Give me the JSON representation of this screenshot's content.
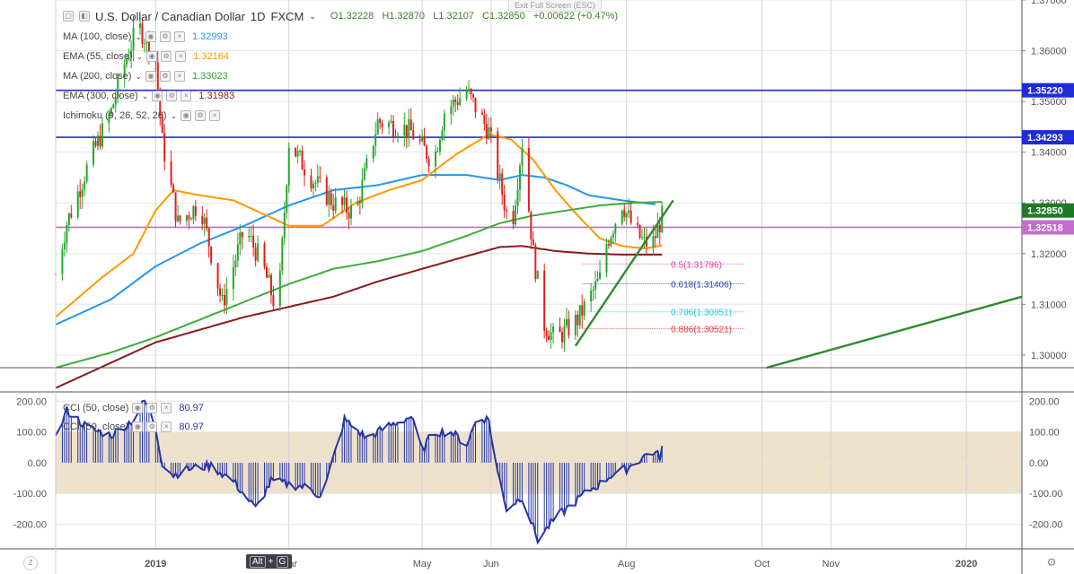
{
  "header": {
    "symbol": "U.S. Dollar / Canadian Dollar",
    "interval": "1D",
    "source": "FXCM",
    "open": "O1.32228",
    "high": "H1.32870",
    "low": "L1.32107",
    "close": "C1.32850",
    "change": "+0.00622 (+0.47%)",
    "exit_fullscreen": "Exit Full Screen (ESC)"
  },
  "indicators": [
    {
      "name": "MA (100, close)",
      "value": "1.32993",
      "color": "#2196f3"
    },
    {
      "name": "EMA (55, close)",
      "value": "1.32164",
      "color": "#ff9800"
    },
    {
      "name": "MA (200, close)",
      "value": "1.33023",
      "color": "#2e9e2e"
    },
    {
      "name": "EMA (300, close)",
      "value": "1.31983",
      "color": "#8b1a1a"
    },
    {
      "name": "Ichimoku (9, 26, 52, 26)",
      "value": "",
      "color": "#888888"
    }
  ],
  "cci_legend": [
    {
      "name": "CCI (50, close)",
      "value": "80.97"
    },
    {
      "name": "CCI (50, close)",
      "value": "80.97"
    }
  ],
  "shortcut": {
    "alt": "Alt",
    "plus": "+",
    "key": "G"
  },
  "corner_left": "Z",
  "colors": {
    "up": "#26a62c",
    "down": "#e0201c",
    "ma100": "#2196f3",
    "ema55": "#ff9800",
    "ma200": "#3cad3c",
    "ema300": "#8b1a1a",
    "hline": "#1e2bd6",
    "magenta": "#c06ec8",
    "trend": "#2e8b2e",
    "cci": "#2636a8",
    "cci_band": "#ede1cb"
  },
  "chart_data": {
    "type": "candlestick",
    "price_axis": {
      "ylim": [
        1.2975,
        1.37
      ],
      "ticks": [
        "1.37000",
        "1.36000",
        "1.35000",
        "1.34000",
        "1.33000",
        "1.32000",
        "1.31000",
        "1.30000"
      ],
      "tick_values": [
        1.37,
        1.36,
        1.35,
        1.34,
        1.33,
        1.32,
        1.31,
        1.3
      ]
    },
    "x_axis": {
      "labels": [
        "2019",
        "Mar",
        "May",
        "Jun",
        "Aug",
        "Oct",
        "Nov",
        "2020"
      ],
      "label_days": [
        0,
        60,
        120,
        151,
        212,
        273,
        304,
        365
      ],
      "xlim_days": [
        -45,
        390
      ]
    },
    "price_labels": [
      {
        "text": "1.35220",
        "value": 1.3522,
        "color": "#1e2bd6"
      },
      {
        "text": "1.34293",
        "value": 1.34293,
        "color": "#1e2bd6"
      },
      {
        "text": "1.32850",
        "value": 1.3285,
        "color": "#1f7a26"
      },
      {
        "text": "1.32518",
        "value": 1.32518,
        "color": "#c06ec8"
      }
    ],
    "horizontal_lines": [
      {
        "value": 1.3522,
        "color": "#1e2bd6"
      },
      {
        "value": 1.34293,
        "color": "#1e2bd6"
      },
      {
        "value": 1.32518,
        "color": "#c06ec8"
      }
    ],
    "fibonacci": [
      {
        "label": "0.5(1.31796)",
        "value": 1.31796,
        "color": "#e040a0"
      },
      {
        "label": "0.618(1.31406)",
        "value": 1.31406,
        "color": "#3040b0"
      },
      {
        "label": "0.786(1.30851)",
        "value": 1.30851,
        "color": "#26c6da"
      },
      {
        "label": "0.886(1.30521)",
        "value": 1.30521,
        "color": "#e53935"
      }
    ],
    "ohlc_anchors": {
      "days": [
        -45,
        -40,
        -30,
        -20,
        -15,
        -8,
        -4,
        0,
        3,
        10,
        20,
        30,
        40,
        48,
        55,
        60,
        70,
        80,
        90,
        100,
        110,
        115,
        125,
        130,
        140,
        150,
        155,
        160,
        165,
        170,
        175,
        180,
        190,
        200,
        203,
        210,
        215,
        220,
        224,
        229
      ],
      "close": [
        1.316,
        1.326,
        1.338,
        1.348,
        1.356,
        1.365,
        1.362,
        1.358,
        1.342,
        1.326,
        1.33,
        1.31,
        1.325,
        1.318,
        1.308,
        1.342,
        1.335,
        1.33,
        1.328,
        1.346,
        1.345,
        1.344,
        1.338,
        1.348,
        1.352,
        1.344,
        1.334,
        1.324,
        1.342,
        1.32,
        1.306,
        1.303,
        1.307,
        1.315,
        1.322,
        1.33,
        1.325,
        1.322,
        1.3223,
        1.3285
      ]
    },
    "moving_averages": [
      {
        "name": "MA100",
        "color": "#2196f3",
        "days": [
          -45,
          -20,
          0,
          20,
          40,
          60,
          80,
          100,
          120,
          140,
          155,
          165,
          175,
          185,
          195,
          210,
          225
        ],
        "values": [
          1.306,
          1.311,
          1.3175,
          1.322,
          1.3255,
          1.3295,
          1.3325,
          1.3335,
          1.3355,
          1.3355,
          1.3345,
          1.3355,
          1.335,
          1.3335,
          1.3315,
          1.3305,
          1.3297
        ]
      },
      {
        "name": "EMA55",
        "color": "#ff9800",
        "days": [
          -45,
          -25,
          -10,
          0,
          8,
          20,
          35,
          50,
          60,
          75,
          90,
          105,
          120,
          135,
          150,
          160,
          170,
          180,
          190,
          200,
          210,
          220,
          228
        ],
        "values": [
          1.3075,
          1.315,
          1.32,
          1.3285,
          1.3325,
          1.3315,
          1.3305,
          1.3275,
          1.3255,
          1.3255,
          1.33,
          1.3325,
          1.3345,
          1.3395,
          1.3435,
          1.3425,
          1.3385,
          1.3325,
          1.3275,
          1.323,
          1.3215,
          1.321,
          1.3216
        ]
      },
      {
        "name": "MA200",
        "color": "#3cad3c",
        "days": [
          -45,
          -20,
          0,
          20,
          40,
          60,
          80,
          100,
          120,
          140,
          155,
          170,
          185,
          200,
          215,
          228
        ],
        "values": [
          1.2975,
          1.3005,
          1.3035,
          1.307,
          1.3105,
          1.314,
          1.317,
          1.3185,
          1.3205,
          1.3235,
          1.326,
          1.3275,
          1.3285,
          1.3295,
          1.33,
          1.3302
        ]
      },
      {
        "name": "EMA300",
        "color": "#8b1a1a",
        "days": [
          -45,
          -20,
          0,
          20,
          40,
          60,
          80,
          100,
          120,
          140,
          155,
          165,
          180,
          195,
          210,
          228
        ],
        "values": [
          1.2935,
          1.2985,
          1.3025,
          1.305,
          1.3075,
          1.3095,
          1.3115,
          1.3145,
          1.317,
          1.3195,
          1.3213,
          1.3215,
          1.3205,
          1.32,
          1.3198,
          1.3198
        ]
      }
    ],
    "trendlines": [
      {
        "color": "#2e8b2e",
        "days": [
          189,
          233
        ],
        "values": [
          1.3018,
          1.3305
        ]
      },
      {
        "color": "#2e8b2e",
        "days": [
          275,
          390
        ],
        "values": [
          1.2975,
          1.3115
        ]
      }
    ],
    "cci": {
      "ylim": [
        -280,
        230
      ],
      "ticks": [
        "200.00",
        "100.00",
        "0.00",
        "-100.00",
        "-200.00"
      ],
      "tick_values": [
        200,
        100,
        0,
        -100,
        -200
      ],
      "band": [
        -100,
        100
      ],
      "days": [
        -45,
        -40,
        -30,
        -20,
        -10,
        -5,
        -2,
        0,
        3,
        8,
        15,
        25,
        35,
        45,
        52,
        60,
        68,
        75,
        85,
        95,
        105,
        115,
        120,
        125,
        133,
        140,
        145,
        150,
        153,
        158,
        165,
        172,
        180,
        190,
        195,
        200,
        205,
        212,
        218,
        223,
        227,
        229
      ],
      "values": [
        80,
        170,
        110,
        90,
        140,
        200,
        160,
        110,
        0,
        -40,
        -20,
        -10,
        -60,
        -150,
        -60,
        -70,
        -80,
        -110,
        140,
        80,
        120,
        150,
        40,
        100,
        100,
        60,
        150,
        140,
        0,
        -150,
        -110,
        -250,
        -180,
        -120,
        -90,
        -70,
        -40,
        -20,
        10,
        40,
        20,
        81
      ]
    }
  }
}
